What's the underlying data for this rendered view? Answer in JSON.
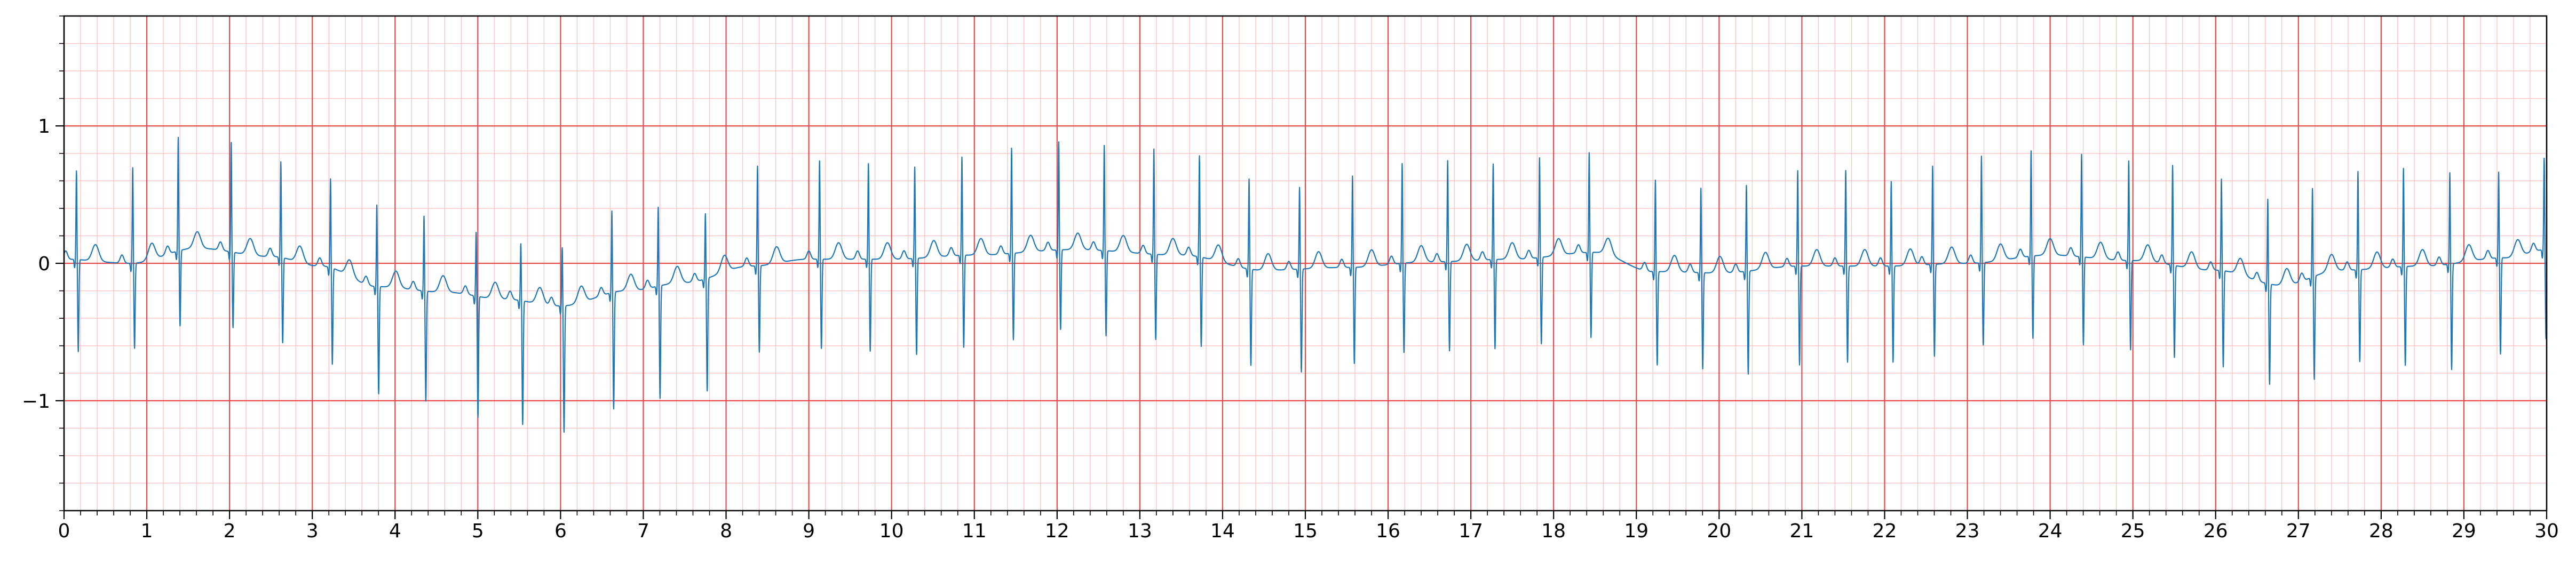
{
  "chart_data": {
    "type": "line",
    "title": "",
    "xlabel": "",
    "ylabel": "",
    "xlim": [
      0,
      30
    ],
    "ylim": [
      -1.8,
      1.8
    ],
    "xticks": [
      0,
      1,
      2,
      3,
      4,
      5,
      6,
      7,
      8,
      9,
      10,
      11,
      12,
      13,
      14,
      15,
      16,
      17,
      18,
      19,
      20,
      21,
      22,
      23,
      24,
      25,
      26,
      27,
      28,
      29,
      30
    ],
    "xtick_labels": [
      "0",
      "1",
      "2",
      "3",
      "4",
      "5",
      "6",
      "7",
      "8",
      "9",
      "10",
      "11",
      "12",
      "13",
      "14",
      "15",
      "16",
      "17",
      "18",
      "19",
      "20",
      "21",
      "22",
      "23",
      "24",
      "25",
      "26",
      "27",
      "28",
      "29",
      "30"
    ],
    "yticks": [
      -1,
      0,
      1
    ],
    "ytick_labels": [
      "−1",
      "0",
      "1"
    ],
    "grid": {
      "major_step_x": 1,
      "major_step_y": 1,
      "minor_step_x": 0.2,
      "minor_step_y": 0.2,
      "major_color": "#e84b4b",
      "minor_color": "#ffc2c2"
    },
    "line_color": "#1f77b4",
    "series": [
      {
        "baseline": [
          {
            "t": 0,
            "v": 0.03
          },
          {
            "t": 0.8,
            "v": 0.0
          },
          {
            "t": 1.6,
            "v": 0.11
          },
          {
            "t": 2.5,
            "v": 0.05
          },
          {
            "t": 3.1,
            "v": -0.02
          },
          {
            "t": 3.8,
            "v": -0.17
          },
          {
            "t": 4.6,
            "v": -0.21
          },
          {
            "t": 5.3,
            "v": -0.26
          },
          {
            "t": 6.0,
            "v": -0.31
          },
          {
            "t": 6.8,
            "v": -0.2
          },
          {
            "t": 7.5,
            "v": -0.14
          },
          {
            "t": 8.3,
            "v": -0.02
          },
          {
            "t": 9.0,
            "v": 0.03
          },
          {
            "t": 10.0,
            "v": 0.03
          },
          {
            "t": 11.0,
            "v": 0.06
          },
          {
            "t": 12.2,
            "v": 0.1
          },
          {
            "t": 13.5,
            "v": 0.06
          },
          {
            "t": 14.5,
            "v": -0.05
          },
          {
            "t": 15.5,
            "v": -0.03
          },
          {
            "t": 16.5,
            "v": 0.01
          },
          {
            "t": 17.5,
            "v": 0.03
          },
          {
            "t": 18.5,
            "v": 0.08
          },
          {
            "t": 19.2,
            "v": -0.06
          },
          {
            "t": 20.0,
            "v": -0.07
          },
          {
            "t": 21.0,
            "v": -0.02
          },
          {
            "t": 22.0,
            "v": -0.02
          },
          {
            "t": 23.0,
            "v": 0.0
          },
          {
            "t": 24.0,
            "v": 0.06
          },
          {
            "t": 25.0,
            "v": 0.02
          },
          {
            "t": 26.0,
            "v": -0.05
          },
          {
            "t": 26.8,
            "v": -0.16
          },
          {
            "t": 27.5,
            "v": -0.05
          },
          {
            "t": 28.5,
            "v": -0.02
          },
          {
            "t": 29.5,
            "v": 0.04
          },
          {
            "t": 30.0,
            "v": 0.1
          }
        ],
        "beats": [
          {
            "t": 0.15,
            "r": 0.65,
            "s": -0.67
          },
          {
            "t": 0.83,
            "r": 0.7,
            "s": -0.62
          },
          {
            "t": 1.38,
            "r": 0.83,
            "s": -0.55
          },
          {
            "t": 2.02,
            "r": 0.8,
            "s": -0.55
          },
          {
            "t": 2.62,
            "r": 0.7,
            "s": -0.62
          },
          {
            "t": 3.22,
            "r": 0.65,
            "s": -0.7
          },
          {
            "t": 3.78,
            "r": 0.6,
            "s": -0.78
          },
          {
            "t": 4.35,
            "r": 0.55,
            "s": -0.8
          },
          {
            "t": 4.98,
            "r": 0.47,
            "s": -0.88
          },
          {
            "t": 5.52,
            "r": 0.42,
            "s": -0.9
          },
          {
            "t": 6.02,
            "r": 0.43,
            "s": -0.92
          },
          {
            "t": 6.62,
            "r": 0.6,
            "s": -0.85
          },
          {
            "t": 7.18,
            "r": 0.58,
            "s": -0.82
          },
          {
            "t": 7.75,
            "r": 0.48,
            "s": -0.82
          },
          {
            "t": 8.38,
            "r": 0.73,
            "s": -0.63
          },
          {
            "t": 9.13,
            "r": 0.72,
            "s": -0.65
          },
          {
            "t": 9.72,
            "r": 0.7,
            "s": -0.67
          },
          {
            "t": 10.28,
            "r": 0.67,
            "s": -0.7
          },
          {
            "t": 10.85,
            "r": 0.72,
            "s": -0.67
          },
          {
            "t": 11.45,
            "r": 0.77,
            "s": -0.63
          },
          {
            "t": 12.02,
            "r": 0.79,
            "s": -0.58
          },
          {
            "t": 12.57,
            "r": 0.77,
            "s": -0.62
          },
          {
            "t": 13.17,
            "r": 0.77,
            "s": -0.62
          },
          {
            "t": 13.72,
            "r": 0.74,
            "s": -0.65
          },
          {
            "t": 14.32,
            "r": 0.66,
            "s": -0.7
          },
          {
            "t": 14.93,
            "r": 0.6,
            "s": -0.75
          },
          {
            "t": 15.57,
            "r": 0.67,
            "s": -0.7
          },
          {
            "t": 16.17,
            "r": 0.73,
            "s": -0.65
          },
          {
            "t": 16.72,
            "r": 0.74,
            "s": -0.65
          },
          {
            "t": 17.27,
            "r": 0.7,
            "s": -0.65
          },
          {
            "t": 17.83,
            "r": 0.73,
            "s": -0.63
          },
          {
            "t": 18.43,
            "r": 0.73,
            "s": -0.62
          },
          {
            "t": 19.23,
            "r": 0.67,
            "s": -0.68
          },
          {
            "t": 19.78,
            "r": 0.62,
            "s": -0.7
          },
          {
            "t": 20.33,
            "r": 0.63,
            "s": -0.75
          },
          {
            "t": 20.95,
            "r": 0.7,
            "s": -0.72
          },
          {
            "t": 21.53,
            "r": 0.7,
            "s": -0.7
          },
          {
            "t": 22.08,
            "r": 0.62,
            "s": -0.7
          },
          {
            "t": 22.58,
            "r": 0.72,
            "s": -0.67
          },
          {
            "t": 23.17,
            "r": 0.78,
            "s": -0.6
          },
          {
            "t": 23.77,
            "r": 0.77,
            "s": -0.6
          },
          {
            "t": 24.38,
            "r": 0.75,
            "s": -0.64
          },
          {
            "t": 24.95,
            "r": 0.73,
            "s": -0.65
          },
          {
            "t": 25.48,
            "r": 0.73,
            "s": -0.67
          },
          {
            "t": 26.07,
            "r": 0.67,
            "s": -0.7
          },
          {
            "t": 26.63,
            "r": 0.62,
            "s": -0.73
          },
          {
            "t": 27.17,
            "r": 0.65,
            "s": -0.75
          },
          {
            "t": 27.72,
            "r": 0.72,
            "s": -0.67
          },
          {
            "t": 28.27,
            "r": 0.72,
            "s": -0.72
          },
          {
            "t": 28.83,
            "r": 0.67,
            "s": -0.77
          },
          {
            "t": 29.42,
            "r": 0.63,
            "s": -0.7
          },
          {
            "t": 29.97,
            "r": 0.67,
            "s": -0.65
          }
        ]
      }
    ]
  }
}
